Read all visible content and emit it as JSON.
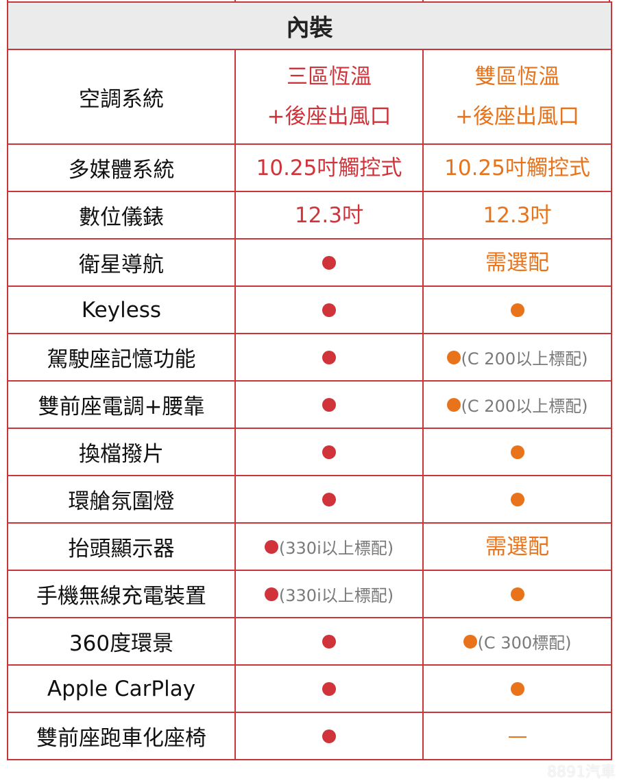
{
  "section_title": "內裝",
  "colors": {
    "border": "#c8363c",
    "col1": "#d0343a",
    "col2": "#e8731a",
    "note": "#7a7a7a",
    "header_bg": "#ebebeb"
  },
  "rows": [
    {
      "label": "空調系統",
      "c1": {
        "type": "text",
        "lines": [
          "三區恆溫",
          "+後座出風口"
        ]
      },
      "c2": {
        "type": "text",
        "lines": [
          "雙區恆溫",
          "+後座出風口"
        ]
      }
    },
    {
      "label": "多媒體系統",
      "c1": {
        "type": "text",
        "lines": [
          "10.25吋觸控式"
        ]
      },
      "c2": {
        "type": "text",
        "lines": [
          "10.25吋觸控式"
        ]
      }
    },
    {
      "label": "數位儀錶",
      "c1": {
        "type": "text",
        "lines": [
          "12.3吋"
        ]
      },
      "c2": {
        "type": "text",
        "lines": [
          "12.3吋"
        ]
      }
    },
    {
      "label": "衛星導航",
      "c1": {
        "type": "dot"
      },
      "c2": {
        "type": "text",
        "lines": [
          "需選配"
        ]
      }
    },
    {
      "label": "Keyless",
      "c1": {
        "type": "dot"
      },
      "c2": {
        "type": "dot"
      }
    },
    {
      "label": "駕駛座記憶功能",
      "c1": {
        "type": "dot"
      },
      "c2": {
        "type": "dot-note",
        "note": "(C 200以上標配)"
      }
    },
    {
      "label": "雙前座電調+腰靠",
      "c1": {
        "type": "dot"
      },
      "c2": {
        "type": "dot-note",
        "note": "(C 200以上標配)"
      }
    },
    {
      "label": "換檔撥片",
      "c1": {
        "type": "dot"
      },
      "c2": {
        "type": "dot"
      }
    },
    {
      "label": "環艙氛圍燈",
      "c1": {
        "type": "dot"
      },
      "c2": {
        "type": "dot"
      }
    },
    {
      "label": "抬頭顯示器",
      "c1": {
        "type": "dot-note",
        "note": "(330i以上標配)"
      },
      "c2": {
        "type": "text",
        "lines": [
          "需選配"
        ]
      }
    },
    {
      "label": "手機無線充電裝置",
      "c1": {
        "type": "dot-note",
        "note": "(330i以上標配)"
      },
      "c2": {
        "type": "dot"
      }
    },
    {
      "label": "360度環景",
      "c1": {
        "type": "dot"
      },
      "c2": {
        "type": "dot-note",
        "note": "(C 300標配)"
      }
    },
    {
      "label": "Apple CarPlay",
      "c1": {
        "type": "dot"
      },
      "c2": {
        "type": "dot"
      }
    },
    {
      "label": "雙前座跑車化座椅",
      "c1": {
        "type": "dot"
      },
      "c2": {
        "type": "dash"
      }
    }
  ],
  "watermark": "8891汽車"
}
